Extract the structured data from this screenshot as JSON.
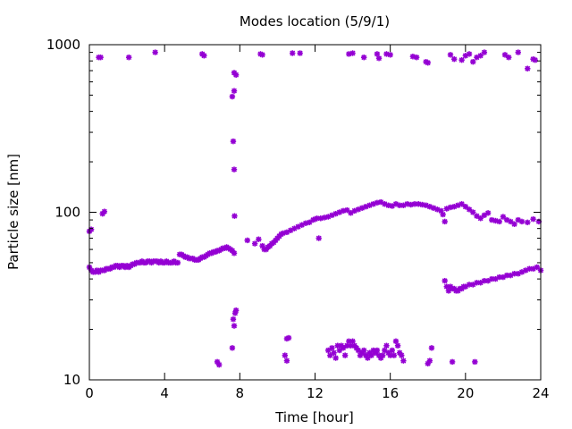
{
  "chart_data": {
    "type": "scatter",
    "title": "Modes location (5/9/1)",
    "xlabel": "Time [hour]",
    "ylabel": "Particle size [nm]",
    "xlim": [
      0,
      24
    ],
    "ylim": [
      10,
      1000
    ],
    "yscale": "log",
    "grid": false,
    "legend": "none",
    "xticks": [
      0,
      4,
      8,
      12,
      16,
      20,
      24
    ],
    "xtick_labels": [
      "0",
      "4",
      "8",
      "12",
      "16",
      "20",
      "24"
    ],
    "yticks": [
      10,
      100,
      1000
    ],
    "ytick_labels": [
      "10",
      "100",
      "1000"
    ],
    "marker_color": "#9400d3",
    "series": [
      {
        "points": [
          [
            0.0,
            47
          ],
          [
            0.1,
            45
          ],
          [
            0.2,
            44
          ],
          [
            0.3,
            44
          ],
          [
            0.4,
            45
          ],
          [
            0.5,
            44
          ],
          [
            0.6,
            45
          ],
          [
            0.7,
            45
          ],
          [
            0.8,
            45
          ],
          [
            0.9,
            46
          ],
          [
            1.0,
            46
          ],
          [
            1.1,
            46
          ],
          [
            1.2,
            47
          ],
          [
            1.3,
            47
          ],
          [
            1.4,
            48
          ],
          [
            1.5,
            48
          ],
          [
            1.6,
            47
          ],
          [
            1.7,
            48
          ],
          [
            1.8,
            48
          ],
          [
            1.9,
            47
          ],
          [
            2.0,
            48
          ],
          [
            2.1,
            47
          ],
          [
            2.2,
            48
          ],
          [
            2.3,
            49
          ],
          [
            2.4,
            49
          ],
          [
            2.5,
            50
          ],
          [
            2.6,
            50
          ],
          [
            2.7,
            50
          ],
          [
            2.8,
            51
          ],
          [
            2.9,
            50
          ],
          [
            3.0,
            50
          ],
          [
            3.1,
            51
          ],
          [
            3.2,
            51
          ],
          [
            3.3,
            50
          ],
          [
            3.4,
            51
          ],
          [
            3.5,
            51
          ],
          [
            3.6,
            51
          ],
          [
            3.7,
            50
          ],
          [
            3.8,
            51
          ],
          [
            3.9,
            50
          ],
          [
            4.0,
            50
          ],
          [
            4.1,
            51
          ],
          [
            4.2,
            50
          ],
          [
            4.3,
            50
          ],
          [
            4.4,
            50
          ],
          [
            4.5,
            51
          ],
          [
            4.6,
            50
          ],
          [
            4.7,
            50
          ],
          [
            4.8,
            56
          ],
          [
            4.9,
            56
          ],
          [
            5.0,
            55
          ],
          [
            5.1,
            54
          ],
          [
            5.2,
            54
          ],
          [
            5.3,
            53
          ],
          [
            5.4,
            53
          ],
          [
            5.5,
            53
          ],
          [
            5.6,
            52
          ],
          [
            5.7,
            52
          ],
          [
            5.8,
            52
          ],
          [
            5.9,
            53
          ],
          [
            6.0,
            54
          ],
          [
            6.1,
            54
          ],
          [
            6.2,
            55
          ],
          [
            6.3,
            56
          ],
          [
            6.4,
            57
          ],
          [
            6.5,
            57
          ],
          [
            6.6,
            58
          ],
          [
            6.7,
            58
          ],
          [
            6.8,
            59
          ],
          [
            6.9,
            59
          ],
          [
            7.0,
            60
          ],
          [
            7.1,
            61
          ],
          [
            7.2,
            61
          ],
          [
            7.3,
            62
          ],
          [
            7.4,
            61
          ],
          [
            7.5,
            60
          ],
          [
            7.6,
            59
          ],
          [
            7.7,
            57
          ],
          [
            8.8,
            65
          ],
          [
            9.0,
            69
          ],
          [
            9.2,
            63
          ],
          [
            9.3,
            60
          ],
          [
            9.4,
            60
          ],
          [
            9.5,
            62
          ],
          [
            9.6,
            63
          ],
          [
            9.7,
            65
          ],
          [
            9.8,
            66
          ],
          [
            9.9,
            68
          ],
          [
            10.0,
            70
          ],
          [
            10.1,
            72
          ],
          [
            10.2,
            74
          ],
          [
            10.3,
            75
          ],
          [
            10.5,
            76
          ],
          [
            10.7,
            78
          ],
          [
            10.9,
            80
          ],
          [
            11.1,
            82
          ],
          [
            11.3,
            84
          ],
          [
            11.5,
            86
          ],
          [
            11.7,
            87
          ],
          [
            11.9,
            90
          ],
          [
            12.0,
            91
          ],
          [
            12.1,
            92
          ],
          [
            12.3,
            92
          ],
          [
            12.5,
            93
          ],
          [
            12.7,
            94
          ],
          [
            12.9,
            96
          ],
          [
            13.1,
            98
          ],
          [
            13.3,
            100
          ],
          [
            13.5,
            102
          ],
          [
            13.7,
            103
          ],
          [
            13.9,
            99
          ],
          [
            14.1,
            102
          ],
          [
            14.3,
            104
          ],
          [
            14.5,
            106
          ],
          [
            14.7,
            108
          ],
          [
            14.9,
            110
          ],
          [
            15.1,
            112
          ],
          [
            15.3,
            114
          ],
          [
            15.5,
            115
          ],
          [
            15.7,
            112
          ],
          [
            15.9,
            110
          ],
          [
            16.1,
            109
          ],
          [
            16.3,
            112
          ],
          [
            16.5,
            110
          ],
          [
            16.7,
            110
          ],
          [
            16.9,
            112
          ],
          [
            17.1,
            111
          ],
          [
            17.3,
            112
          ],
          [
            17.5,
            112
          ],
          [
            17.7,
            111
          ],
          [
            17.9,
            110
          ],
          [
            18.1,
            108
          ],
          [
            18.3,
            106
          ],
          [
            18.5,
            104
          ],
          [
            18.7,
            102
          ],
          [
            18.8,
            97
          ],
          [
            18.9,
            88
          ],
          [
            19.0,
            105
          ],
          [
            19.2,
            107
          ],
          [
            19.4,
            108
          ],
          [
            19.6,
            110
          ],
          [
            19.8,
            112
          ],
          [
            20.0,
            108
          ],
          [
            20.2,
            104
          ],
          [
            20.4,
            100
          ],
          [
            20.6,
            95
          ],
          [
            20.8,
            92
          ],
          [
            21.0,
            96
          ],
          [
            21.2,
            99
          ],
          [
            21.4,
            90
          ],
          [
            21.6,
            89
          ],
          [
            21.8,
            88
          ],
          [
            22.0,
            94
          ],
          [
            22.2,
            90
          ],
          [
            22.4,
            88
          ],
          [
            22.6,
            85
          ],
          [
            22.8,
            90
          ],
          [
            23.0,
            88
          ],
          [
            23.3,
            87
          ],
          [
            23.6,
            91
          ],
          [
            23.9,
            88
          ],
          [
            12.2,
            70
          ],
          [
            8.4,
            68
          ],
          [
            18.9,
            39
          ],
          [
            19.0,
            36
          ],
          [
            19.1,
            34
          ],
          [
            19.2,
            36
          ],
          [
            19.3,
            35
          ],
          [
            19.4,
            35
          ],
          [
            19.5,
            34
          ],
          [
            19.6,
            34
          ],
          [
            19.7,
            35
          ],
          [
            19.8,
            35
          ],
          [
            19.9,
            36
          ],
          [
            20.0,
            36
          ],
          [
            20.2,
            37
          ],
          [
            20.4,
            37
          ],
          [
            20.6,
            38
          ],
          [
            20.8,
            38
          ],
          [
            21.0,
            39
          ],
          [
            21.2,
            39
          ],
          [
            21.4,
            40
          ],
          [
            21.6,
            40
          ],
          [
            21.8,
            41
          ],
          [
            22.0,
            41
          ],
          [
            22.2,
            42
          ],
          [
            22.4,
            42
          ],
          [
            22.6,
            43
          ],
          [
            22.8,
            43
          ],
          [
            23.0,
            44
          ],
          [
            23.2,
            45
          ],
          [
            23.4,
            46
          ],
          [
            23.6,
            46
          ],
          [
            23.8,
            47
          ],
          [
            24.0,
            45
          ],
          [
            0.0,
            77
          ],
          [
            0.1,
            79
          ],
          [
            0.7,
            98
          ],
          [
            0.8,
            101
          ],
          [
            0.5,
            840
          ],
          [
            0.6,
            840
          ],
          [
            2.1,
            840
          ],
          [
            3.5,
            900
          ],
          [
            6.0,
            880
          ],
          [
            6.1,
            860
          ],
          [
            9.1,
            880
          ],
          [
            9.2,
            870
          ],
          [
            10.8,
            890
          ],
          [
            11.2,
            890
          ],
          [
            13.8,
            880
          ],
          [
            14.0,
            890
          ],
          [
            14.6,
            840
          ],
          [
            15.3,
            880
          ],
          [
            15.4,
            830
          ],
          [
            15.8,
            880
          ],
          [
            16.0,
            870
          ],
          [
            17.2,
            850
          ],
          [
            17.4,
            840
          ],
          [
            17.9,
            790
          ],
          [
            18.0,
            780
          ],
          [
            19.2,
            870
          ],
          [
            19.4,
            820
          ],
          [
            19.8,
            810
          ],
          [
            20.0,
            860
          ],
          [
            20.2,
            880
          ],
          [
            20.4,
            790
          ],
          [
            20.6,
            840
          ],
          [
            20.8,
            860
          ],
          [
            21.0,
            900
          ],
          [
            22.1,
            870
          ],
          [
            22.3,
            840
          ],
          [
            22.8,
            900
          ],
          [
            23.3,
            720
          ],
          [
            23.6,
            820
          ],
          [
            23.7,
            810
          ],
          [
            7.6,
            490
          ],
          [
            7.7,
            530
          ],
          [
            7.8,
            660
          ],
          [
            7.7,
            680
          ],
          [
            7.65,
            265
          ],
          [
            7.7,
            180
          ],
          [
            7.72,
            95
          ],
          [
            7.8,
            26
          ],
          [
            7.75,
            25
          ],
          [
            7.65,
            23
          ],
          [
            7.7,
            21
          ],
          [
            7.6,
            15.5
          ],
          [
            6.8,
            12.8
          ],
          [
            6.9,
            12.3
          ],
          [
            10.4,
            14
          ],
          [
            10.5,
            13
          ],
          [
            10.6,
            17.8
          ],
          [
            10.5,
            17.6
          ],
          [
            12.7,
            15
          ],
          [
            12.8,
            14
          ],
          [
            12.9,
            15.5
          ],
          [
            13.0,
            14.5
          ],
          [
            13.1,
            13.5
          ],
          [
            13.2,
            16
          ],
          [
            13.3,
            15
          ],
          [
            13.4,
            16
          ],
          [
            13.5,
            15.5
          ],
          [
            13.6,
            14
          ],
          [
            13.7,
            16
          ],
          [
            13.8,
            17
          ],
          [
            13.9,
            16
          ],
          [
            14.0,
            17
          ],
          [
            14.1,
            16
          ],
          [
            14.2,
            15.5
          ],
          [
            14.3,
            15
          ],
          [
            14.4,
            14
          ],
          [
            14.5,
            14.5
          ],
          [
            14.6,
            15
          ],
          [
            14.7,
            14
          ],
          [
            14.8,
            13.5
          ],
          [
            14.9,
            14.5
          ],
          [
            15.0,
            14
          ],
          [
            15.1,
            15
          ],
          [
            15.2,
            14.5
          ],
          [
            15.3,
            15
          ],
          [
            15.4,
            14
          ],
          [
            15.5,
            13.5
          ],
          [
            15.6,
            14
          ],
          [
            15.7,
            15
          ],
          [
            15.8,
            16
          ],
          [
            15.9,
            14.5
          ],
          [
            16.0,
            14
          ],
          [
            16.1,
            15
          ],
          [
            16.2,
            14
          ],
          [
            16.3,
            17
          ],
          [
            16.4,
            16
          ],
          [
            16.5,
            14.5
          ],
          [
            16.6,
            14
          ],
          [
            16.7,
            13
          ],
          [
            18.0,
            12.5
          ],
          [
            18.1,
            13
          ],
          [
            18.2,
            15.5
          ],
          [
            19.3,
            12.8
          ],
          [
            20.5,
            12.8
          ]
        ]
      }
    ]
  }
}
